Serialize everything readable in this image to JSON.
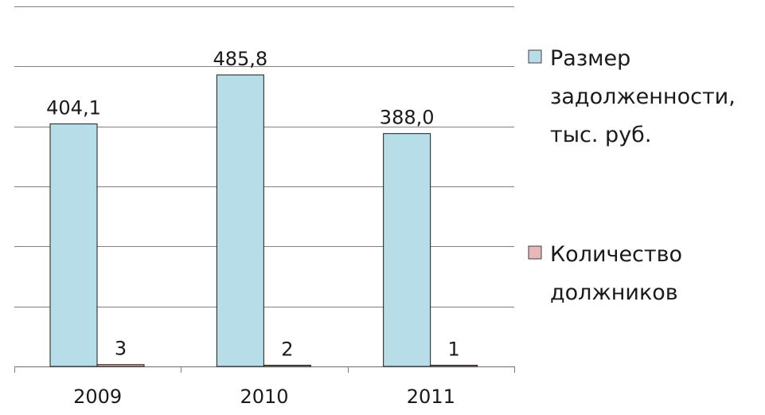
{
  "chart_data": {
    "type": "bar",
    "categories": [
      "2009",
      "2010",
      "2011"
    ],
    "series": [
      {
        "name": "Размер задолженности, тыс. руб.",
        "legend_lines": [
          "Размер",
          "задолженности,",
          "тыс. руб."
        ],
        "values": [
          404.1,
          485.8,
          388.0
        ],
        "labels": [
          "404,1",
          "485,8",
          "388,0"
        ],
        "color": "#b7dde8"
      },
      {
        "name": "Количество должников",
        "legend_lines": [
          "Количество",
          "должников"
        ],
        "values": [
          3,
          2,
          1
        ],
        "labels": [
          "3",
          "2",
          "1"
        ],
        "color": "#e6b9b8"
      }
    ],
    "ylim": [
      0,
      600
    ],
    "gridlines": [
      0,
      100,
      200,
      300,
      400,
      500,
      600
    ],
    "grid": true,
    "legend_position": "right",
    "bar_stroke": "#1a1a1a",
    "grid_color": "#808080"
  }
}
